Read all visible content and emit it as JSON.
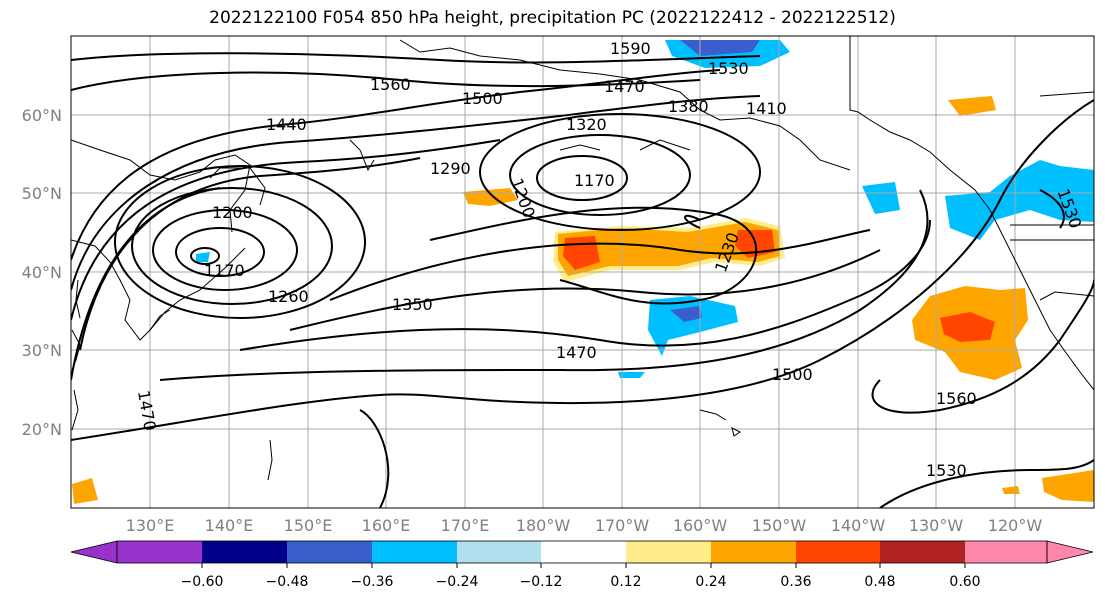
{
  "title": "2022122100 F054 850 hPa height, precipitation PC (2022122412 - 2022122512)",
  "lon_labels": [
    "130°E",
    "140°E",
    "150°E",
    "160°E",
    "170°E",
    "180°W",
    "170°W",
    "160°W",
    "150°W",
    "140°W",
    "130°W",
    "120°W"
  ],
  "lat_labels": [
    "60°N",
    "50°N",
    "40°N",
    "30°N",
    "20°N"
  ],
  "contour_labels": [
    "1590",
    "1530",
    "1560",
    "1470",
    "1500",
    "1440",
    "1380",
    "1410",
    "1320",
    "1290",
    "1200",
    "1170",
    "1200",
    "1230",
    "1170",
    "1260",
    "1350",
    "1470",
    "1500",
    "1560",
    "1530",
    "1470",
    "1530"
  ],
  "colorbar": {
    "ticks": [
      "−0.60",
      "−0.48",
      "−0.36",
      "−0.24",
      "−0.12",
      "0.12",
      "0.24",
      "0.36",
      "0.48",
      "0.60"
    ],
    "colors": [
      "#9932cc",
      "#00008b",
      "#3a5fcd",
      "#00bfff",
      "#b2dfee",
      "#ffffff",
      "#ffec8b",
      "#ffa500",
      "#ff4500",
      "#b22222",
      "#ff88aa",
      "#ff88aa"
    ]
  },
  "shading_colors": {
    "orange": "#ffa500",
    "red_orange": "#ff4500",
    "light_yellow": "#ffec8b",
    "sky_blue": "#00bfff",
    "royal_blue": "#3a5fcd"
  }
}
